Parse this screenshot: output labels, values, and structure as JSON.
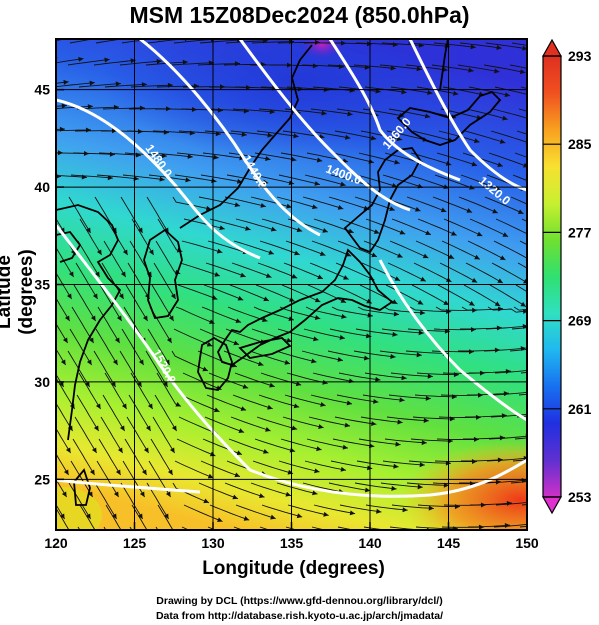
{
  "title": "MSM 15Z08Dec2024 (850.0hPa)",
  "axes": {
    "xlabel": "Longitude (degrees)",
    "ylabel": "Latitude  (degrees)",
    "xticks": [
      "120",
      "125",
      "130",
      "135",
      "140",
      "145",
      "150"
    ],
    "yticks": [
      "25",
      "30",
      "35",
      "40",
      "45"
    ],
    "xlim": [
      120,
      150
    ],
    "ylim": [
      22.4,
      47.6
    ]
  },
  "colorbar": {
    "ticks": [
      "293",
      "285",
      "277",
      "269",
      "261",
      "253"
    ],
    "range": [
      253,
      293
    ],
    "colors": [
      "#d030c8",
      "#6030d0",
      "#2030e0",
      "#1870f0",
      "#20b8f0",
      "#30e0c0",
      "#30e070",
      "#70e030",
      "#c8f030",
      "#f8e030",
      "#f8a020",
      "#f05020",
      "#e03020"
    ]
  },
  "contour_labels": [
    "1480.0",
    "1440.0",
    "1400.0",
    "1360.0",
    "1320.0",
    "1520.0"
  ],
  "credits": {
    "line1": "Drawing by DCL (https://www.gfd-dennou.org/library/dcl/)",
    "line2": "Data from http://database.rish.kyoto-u.ac.jp/arch/jmadata/"
  },
  "chart_data": {
    "type": "heatmap",
    "title": "MSM 15Z08Dec2024 (850.0hPa)",
    "xlabel": "Longitude (degrees)",
    "ylabel": "Latitude  (degrees)",
    "xlim": [
      120,
      150
    ],
    "ylim": [
      22.4,
      47.6
    ],
    "colorbar_range": [
      253,
      293
    ],
    "contour_levels": [
      1320,
      1360,
      1400,
      1440,
      1480,
      1520
    ],
    "grid": true
  }
}
